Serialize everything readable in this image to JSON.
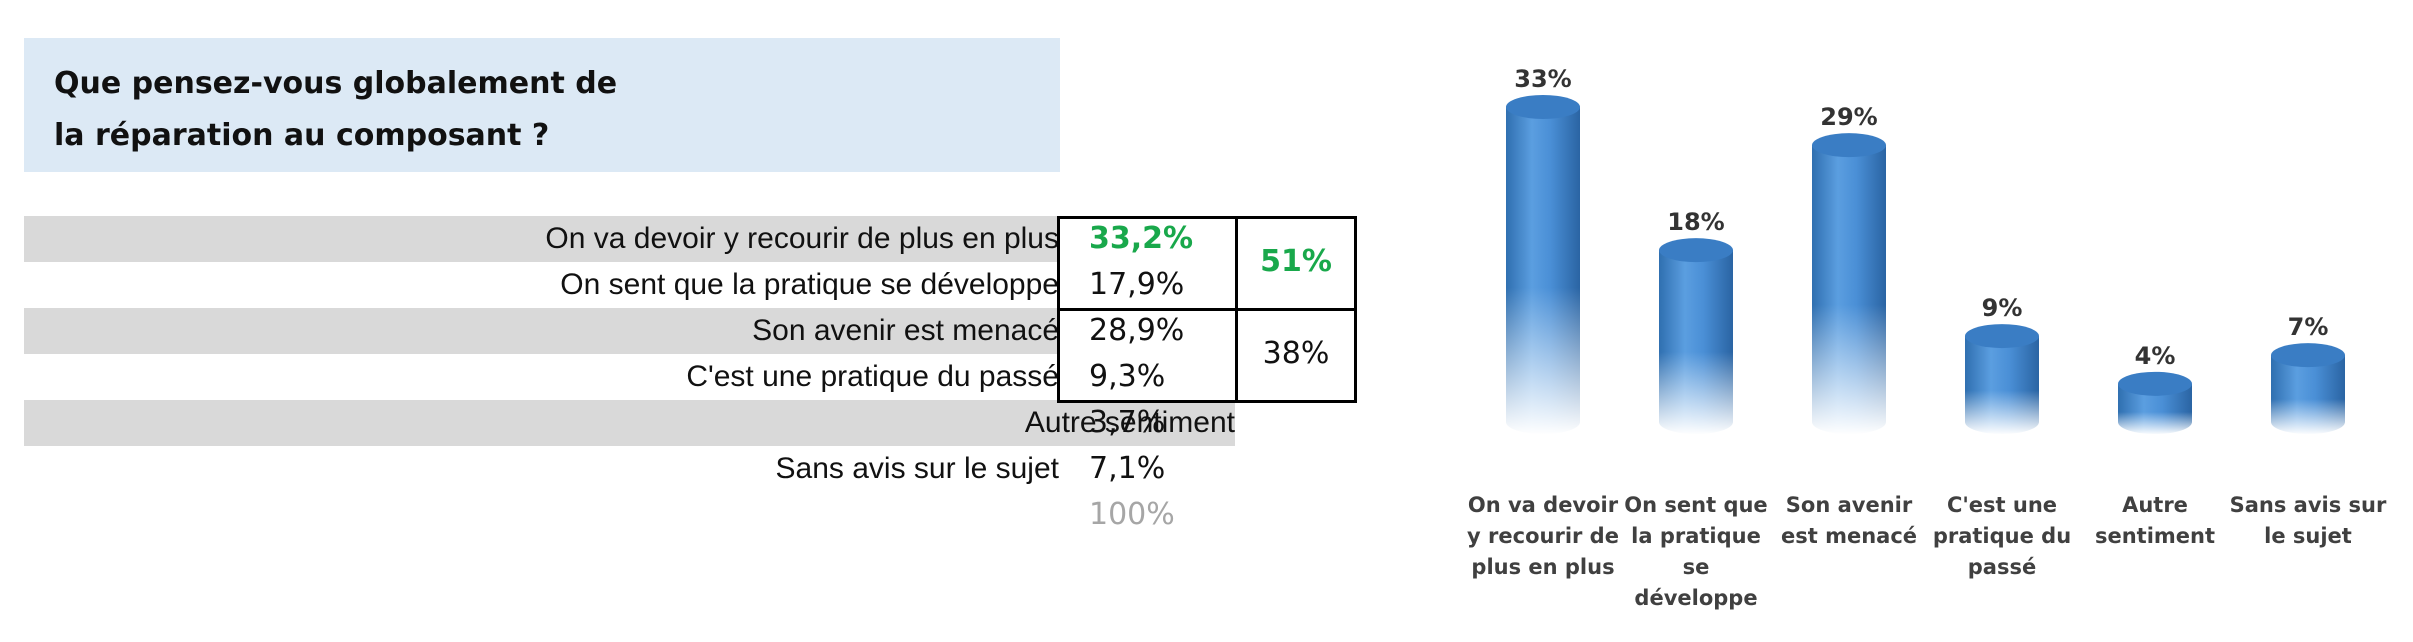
{
  "title": {
    "line1": "Que pensez-vous globalement de",
    "line2": "la réparation au composant ?"
  },
  "table": {
    "rows": [
      {
        "label": "On va devoir y recourir de plus en plus",
        "value": "33,2%",
        "shaded": true,
        "highlight": true
      },
      {
        "label": "On sent que la pratique se développe",
        "value": "17,9%",
        "shaded": false,
        "highlight": false
      },
      {
        "label": "Son avenir est menacé",
        "value": "28,9%",
        "shaded": true,
        "highlight": false
      },
      {
        "label": "C'est une pratique du passé",
        "value": "9,3%",
        "shaded": false,
        "highlight": false
      },
      {
        "label": "Autre sentiment",
        "value": "3,7%",
        "shaded": true,
        "highlight": false
      },
      {
        "label": "Sans avis sur le sujet",
        "value": "7,1%",
        "shaded": false,
        "highlight": false
      }
    ],
    "total": "100%",
    "groups": [
      {
        "value": "51%",
        "highlight": true
      },
      {
        "value": "38%",
        "highlight": false
      }
    ]
  },
  "colors": {
    "highlight_green": "#19a84b",
    "bar_blue": "#3f86cc",
    "row_shade": "#d9d9d9",
    "title_bg": "#dce9f5"
  },
  "chart_data": {
    "type": "bar",
    "categories": [
      [
        "On va devoir",
        "y recourir de",
        "plus en plus"
      ],
      [
        "On sent que",
        "la pratique",
        "se",
        "développe"
      ],
      [
        "Son avenir",
        "est menacé"
      ],
      [
        "C'est une",
        "pratique du",
        "passé"
      ],
      [
        "Autre",
        "sentiment"
      ],
      [
        "Sans avis sur",
        "le sujet"
      ]
    ],
    "values": [
      33,
      18,
      29,
      9,
      4,
      7
    ],
    "data_labels": [
      "33%",
      "18%",
      "29%",
      "9%",
      "4%",
      "7%"
    ],
    "ylim": [
      0,
      33
    ],
    "grid": false,
    "legend": "none"
  }
}
